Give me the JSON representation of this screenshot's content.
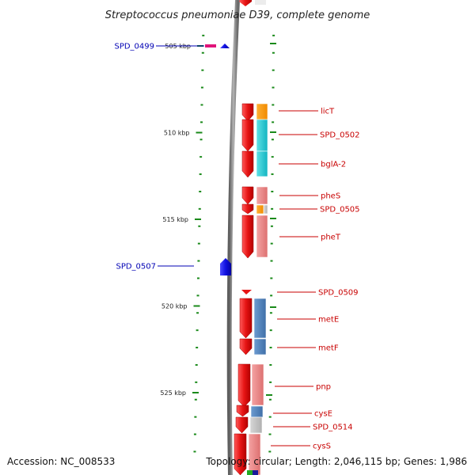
{
  "title": "Streptococcus pneumoniae D39, complete genome",
  "footer": {
    "accession": "Accession: NC_008533",
    "summary": "Topology: circular; Length: 2,046,115 bp; Genes: 1,986"
  },
  "colors": {
    "strand_plus": "#e61414",
    "strand_minus": "#1010e0",
    "label_plus": "#c80000",
    "label_minus": "#0000b4",
    "tick": "#1a8a1a",
    "backbone": "#8a8a8a"
  },
  "ruler": [
    {
      "kbp": 505,
      "label": "505 kbp"
    },
    {
      "kbp": 510,
      "label": "510 kbp"
    },
    {
      "kbp": 515,
      "label": "515 kbp"
    },
    {
      "kbp": 520,
      "label": "520 kbp"
    },
    {
      "kbp": 525,
      "label": "525 kbp"
    }
  ],
  "genes": [
    {
      "id": "SPD_0499",
      "label": "SPD_0499",
      "strand": "-"
    },
    {
      "id": "licT",
      "label": "licT",
      "strand": "+",
      "cog": "orange"
    },
    {
      "id": "SPD_0502",
      "label": "SPD_0502",
      "strand": "+",
      "cog": "cyan"
    },
    {
      "id": "bglA-2",
      "label": "bglA-2",
      "strand": "+",
      "cog": "cyan"
    },
    {
      "id": "pheS",
      "label": "pheS",
      "strand": "+",
      "cog": "pink"
    },
    {
      "id": "SPD_0505",
      "label": "SPD_0505",
      "strand": "+",
      "cog": "orange"
    },
    {
      "id": "pheT",
      "label": "pheT",
      "strand": "+",
      "cog": "pink"
    },
    {
      "id": "SPD_0507",
      "label": "SPD_0507",
      "strand": "-"
    },
    {
      "id": "SPD_0509",
      "label": "SPD_0509",
      "strand": "+"
    },
    {
      "id": "metE",
      "label": "metE",
      "strand": "+",
      "cog": "steelblue"
    },
    {
      "id": "metF",
      "label": "metF",
      "strand": "+",
      "cog": "steelblue"
    },
    {
      "id": "pnp",
      "label": "pnp",
      "strand": "+",
      "cog": "pink"
    },
    {
      "id": "cysE",
      "label": "cysE",
      "strand": "+",
      "cog": "steelblue"
    },
    {
      "id": "SPD_0514",
      "label": "SPD_0514",
      "strand": "+",
      "cog": "gray"
    },
    {
      "id": "cysS",
      "label": "cysS",
      "strand": "+",
      "cog": "pink"
    }
  ]
}
